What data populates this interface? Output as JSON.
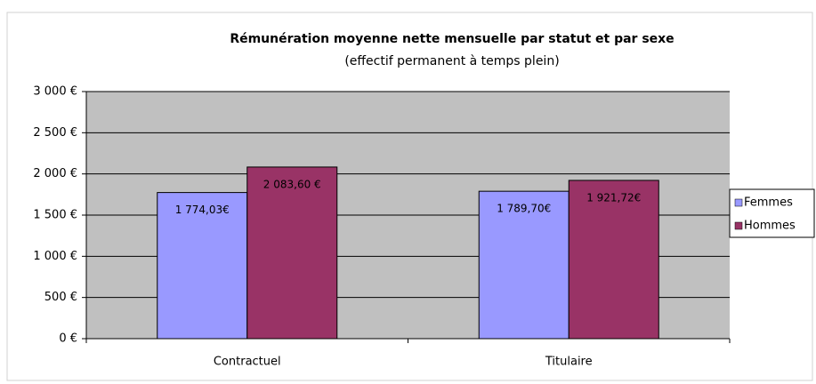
{
  "chart_data": {
    "type": "bar",
    "title": "Rémunération moyenne nette mensuelle par statut et par sexe",
    "subtitle": "(effectif permanent à temps plein)",
    "categories": [
      "Contractuel",
      "Titulaire"
    ],
    "series": [
      {
        "name": "Femmes",
        "color": "#9999ff",
        "values": [
          1774.03,
          1789.7
        ],
        "value_labels": [
          "1 774,03€",
          "1 789,70€"
        ]
      },
      {
        "name": "Hommes",
        "color": "#993366",
        "values": [
          2083.6,
          1921.72
        ],
        "value_labels": [
          "2 083,60 €",
          "1 921,72€"
        ]
      }
    ],
    "ylim": [
      0,
      3000
    ],
    "yticks": [
      {
        "value": 0,
        "label": "0 €"
      },
      {
        "value": 500,
        "label": "500 €"
      },
      {
        "value": 1000,
        "label": "1 000 €"
      },
      {
        "value": 1500,
        "label": "1 500 €"
      },
      {
        "value": 2000,
        "label": "2 000 €"
      },
      {
        "value": 2500,
        "label": "2 500 €"
      },
      {
        "value": 3000,
        "label": "3 000 €"
      }
    ],
    "grid": true,
    "legend": "right"
  }
}
